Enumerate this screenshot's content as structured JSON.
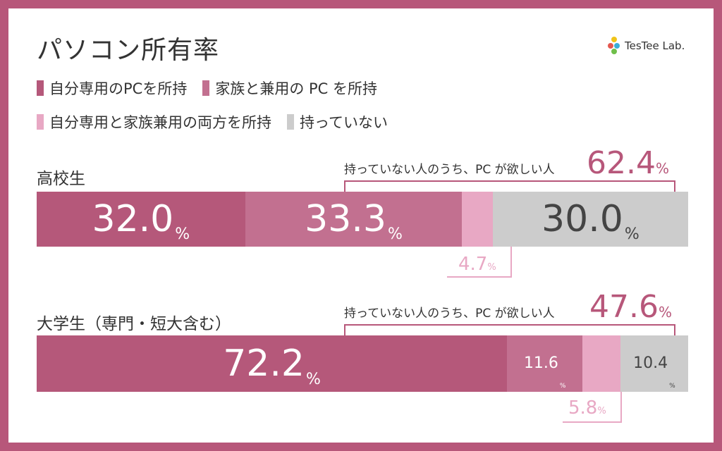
{
  "title": "パソコン所有率",
  "brand": "TesTee Lab.",
  "colors": {
    "own": "#b5587a",
    "family": "#c27090",
    "both": "#e8a8c4",
    "none": "#cccccc",
    "frame": "#b7577a"
  },
  "chart_data": {
    "type": "bar",
    "orientation": "horizontal-stacked-100",
    "categories": [
      "高校生",
      "大学生（専門・短大含む）"
    ],
    "series": [
      {
        "name": "自分専用のPCを所持",
        "values": [
          32.0,
          72.2
        ]
      },
      {
        "name": "家族と兼用の PC を所持",
        "values": [
          33.3,
          11.6
        ]
      },
      {
        "name": "自分専用と家族兼用の両方を所持",
        "values": [
          4.7,
          5.8
        ]
      },
      {
        "name": "持っていない",
        "values": [
          30.0,
          10.4
        ]
      }
    ],
    "value_labels": [
      [
        "32.0",
        "33.3",
        "4.7",
        "30.0"
      ],
      [
        "72.2",
        "11.6",
        "5.8",
        "10.4"
      ]
    ],
    "unit": "%",
    "annotations": [
      {
        "text": "持っていない人のうち、PC が欲しい人",
        "value": "62.4"
      },
      {
        "text": "持っていない人のうち、PC が欲しい人",
        "value": "47.6"
      }
    ]
  }
}
